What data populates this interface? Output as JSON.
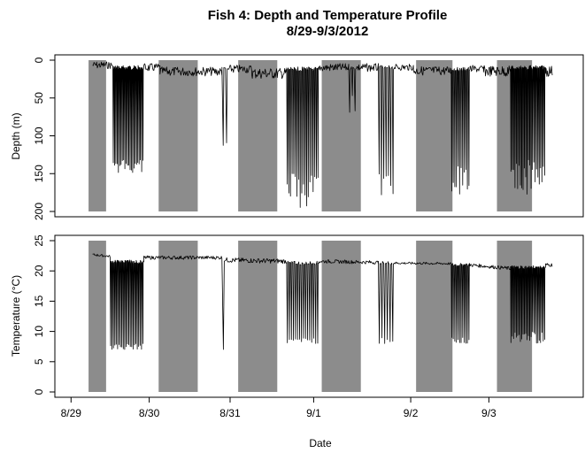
{
  "chart_data": [
    {
      "type": "line",
      "title": "Fish 4: Depth and Temperature Profile",
      "subtitle": "8/29-9/3/2012",
      "xlabel": "",
      "ylabel": "Depth (m)",
      "ylim": [
        200,
        0
      ],
      "y_reversed": true,
      "yticks": [
        0,
        50,
        100,
        150,
        200
      ],
      "grid": false,
      "night_bands_depth_range": [
        0,
        200
      ],
      "series": [
        {
          "segments": [
            {
              "t0": 8.0,
              "t1": 15.5,
              "mode": "surface",
              "base": 5,
              "amp": 8
            },
            {
              "t0": 15.5,
              "t1": 27.0,
              "mode": "dives",
              "base": 10,
              "deep_min": 130,
              "deep_max": 150,
              "count": 24
            },
            {
              "t0": 27.0,
              "t1": 33.0,
              "mode": "surface",
              "base": 8,
              "amp": 9
            },
            {
              "t0": 33.0,
              "t1": 56.0,
              "mode": "surface",
              "base": 13,
              "amp": 10
            },
            {
              "t0": 56.0,
              "t1": 58.5,
              "mode": "dives",
              "base": 12,
              "deep_min": 90,
              "deep_max": 130,
              "count": 2
            },
            {
              "t0": 58.5,
              "t1": 67.0,
              "mode": "surface",
              "base": 10,
              "amp": 9
            },
            {
              "t0": 67.0,
              "t1": 80.0,
              "mode": "surface",
              "base": 15,
              "amp": 12
            },
            {
              "t0": 80.0,
              "t1": 92.0,
              "mode": "dives",
              "base": 12,
              "deep_min": 150,
              "deep_max": 195,
              "count": 20
            },
            {
              "t0": 92.0,
              "t1": 103.0,
              "mode": "surface",
              "base": 8,
              "amp": 9
            },
            {
              "t0": 103.0,
              "t1": 106.0,
              "mode": "dives",
              "base": 10,
              "deep_min": 40,
              "deep_max": 70,
              "count": 3
            },
            {
              "t0": 106.0,
              "t1": 114.0,
              "mode": "surface",
              "base": 8,
              "amp": 9
            },
            {
              "t0": 114.0,
              "t1": 120.0,
              "mode": "dives",
              "base": 10,
              "deep_min": 150,
              "deep_max": 178,
              "count": 7
            },
            {
              "t0": 120.0,
              "t1": 127.0,
              "mode": "surface",
              "base": 8,
              "amp": 7
            },
            {
              "t0": 127.0,
              "t1": 141.0,
              "mode": "surface",
              "base": 12,
              "amp": 10
            },
            {
              "t0": 141.0,
              "t1": 148.0,
              "mode": "dives",
              "base": 12,
              "deep_min": 140,
              "deep_max": 178,
              "count": 12
            },
            {
              "t0": 148.0,
              "t1": 153.0,
              "mode": "surface",
              "base": 10,
              "amp": 8
            },
            {
              "t0": 153.0,
              "t1": 163.0,
              "mode": "surface",
              "base": 12,
              "amp": 12
            },
            {
              "t0": 163.0,
              "t1": 176.0,
              "mode": "dives",
              "base": 10,
              "deep_min": 130,
              "deep_max": 180,
              "count": 26
            },
            {
              "t0": 176.0,
              "t1": 178.5,
              "mode": "surface",
              "base": 12,
              "amp": 12
            }
          ]
        }
      ]
    },
    {
      "type": "line",
      "xlabel": "Date",
      "ylabel": "Temperature (°C)",
      "ylim": [
        0,
        25
      ],
      "yticks": [
        0,
        5,
        10,
        15,
        20,
        25
      ],
      "grid": false,
      "night_bands_temp_range": [
        0,
        25
      ],
      "series": [
        {
          "segments": [
            {
              "t0": 8.0,
              "t1": 14.5,
              "mode": "surface",
              "base": 22.7,
              "amp": 0.2,
              "trend": -0.3
            },
            {
              "t0": 14.5,
              "t1": 27.0,
              "mode": "dives",
              "base": 21.5,
              "deep_min": 7,
              "deep_max": 8,
              "count": 24
            },
            {
              "t0": 27.0,
              "t1": 56.0,
              "mode": "surface",
              "base": 22.2,
              "amp": 0.3,
              "trend": 0.0
            },
            {
              "t0": 56.0,
              "t1": 57.5,
              "mode": "dives",
              "base": 21.8,
              "deep_min": 7,
              "deep_max": 8,
              "count": 1
            },
            {
              "t0": 57.5,
              "t1": 80.0,
              "mode": "surface",
              "base": 21.8,
              "amp": 0.4,
              "trend": -0.2
            },
            {
              "t0": 80.0,
              "t1": 92.0,
              "mode": "dives",
              "base": 21.3,
              "deep_min": 8,
              "deep_max": 9,
              "count": 16
            },
            {
              "t0": 92.0,
              "t1": 114.0,
              "mode": "surface",
              "base": 21.6,
              "amp": 0.3,
              "trend": -0.2
            },
            {
              "t0": 114.0,
              "t1": 120.0,
              "mode": "dives",
              "base": 21.3,
              "deep_min": 8,
              "deep_max": 9,
              "count": 6
            },
            {
              "t0": 120.0,
              "t1": 141.0,
              "mode": "surface",
              "base": 21.3,
              "amp": 0.2,
              "trend": -0.1
            },
            {
              "t0": 141.0,
              "t1": 148.0,
              "mode": "dives",
              "base": 21.0,
              "deep_min": 8,
              "deep_max": 9,
              "count": 12
            },
            {
              "t0": 148.0,
              "t1": 163.0,
              "mode": "surface",
              "base": 21.0,
              "amp": 0.3,
              "trend": -0.6
            },
            {
              "t0": 163.0,
              "t1": 176.0,
              "mode": "dives",
              "base": 20.6,
              "deep_min": 8,
              "deep_max": 10,
              "count": 26
            },
            {
              "t0": 176.0,
              "t1": 178.5,
              "mode": "surface",
              "base": 21.0,
              "amp": 0.3,
              "trend": 0.0
            }
          ]
        }
      ]
    }
  ],
  "x_axis": {
    "start_date": "8/29",
    "tick_labels": [
      {
        "label": "8/29",
        "hour": 0
      },
      {
        "label": "8/30",
        "hour": 29
      },
      {
        "label": "8/31",
        "hour": 59
      },
      {
        "label": "9/1",
        "hour": 90
      },
      {
        "label": "9/2",
        "hour": 126
      },
      {
        "label": "9/3",
        "hour": 155
      }
    ],
    "range_hours": [
      -6,
      190
    ]
  },
  "night_bands_hours": [
    [
      6.5,
      13.0
    ],
    [
      32.5,
      47.0
    ],
    [
      62.0,
      76.5
    ],
    [
      93.0,
      107.5
    ],
    [
      128.0,
      141.5
    ],
    [
      158.0,
      171.0
    ]
  ],
  "colors": {
    "band": "#8c8c8c",
    "trace": "#000000",
    "background": "#ffffff"
  }
}
